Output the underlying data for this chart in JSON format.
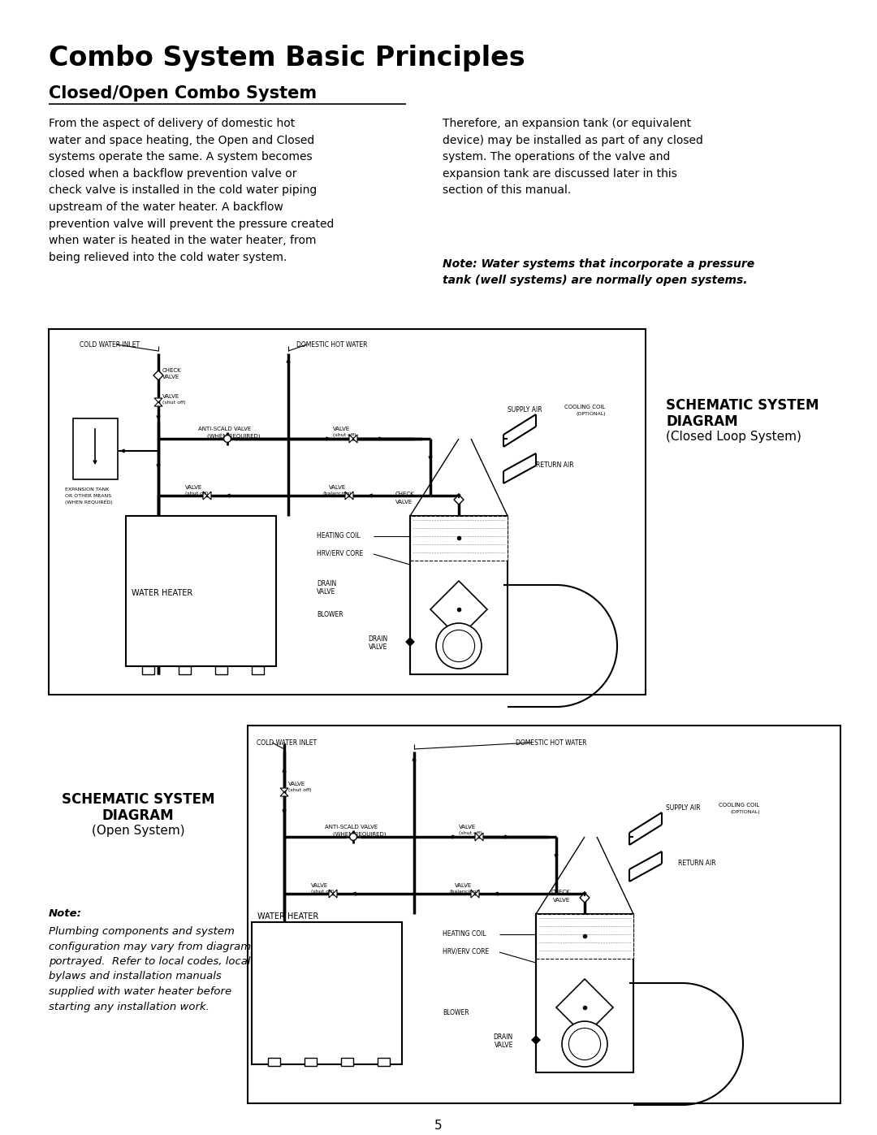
{
  "title": "Combo System Basic Principles",
  "subtitle": "Closed/Open Combo System",
  "body_left": "From the aspect of delivery of domestic hot\nwater and space heating, the Open and Closed\nsystems operate the same. A system becomes\nclosed when a backflow prevention valve or\ncheck valve is installed in the cold water piping\nupstream of the water heater. A backflow\nprevention valve will prevent the pressure created\nwhen water is heated in the water heater, from\nbeing relieved into the cold water system.",
  "body_right": "Therefore, an expansion tank (or equivalent\ndevice) may be installed as part of any closed\nsystem. The operations of the valve and\nexpansion tank are discussed later in this\nsection of this manual.",
  "note_right_label": "Note: Water systems that incorporate a pressure\ntank (well systems) are normally open systems.",
  "diagram1_label_line1": "SCHEMATIC SYSTEM",
  "diagram1_label_line2": "DIAGRAM",
  "diagram1_label_line3": "(Closed Loop System)",
  "diagram2_label_line1": "SCHEMATIC SYSTEM",
  "diagram2_label_line2": "DIAGRAM",
  "diagram2_label_line3": "(Open System)",
  "note_bottom_bold": "Note:",
  "note_bottom_italic": "Plumbing components and system\nconfiguration may vary from diagram\nportrayed.  Refer to local codes, local\nbylaws and installation manuals\nsupplied with water heater before\nstarting any installation work.",
  "page_number": "5",
  "bg_color": "#ffffff",
  "text_color": "#000000"
}
